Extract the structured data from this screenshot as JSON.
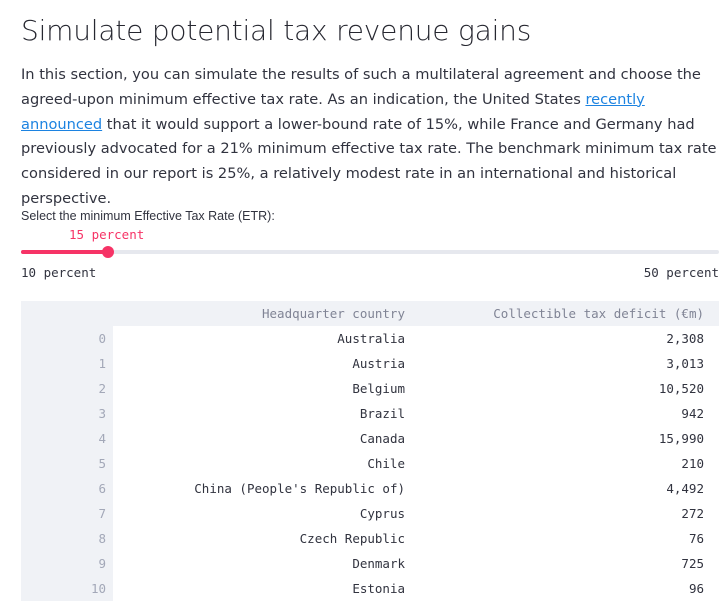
{
  "page": {
    "title": "Simulate potential tax revenue gains",
    "intro": {
      "before_link": "In this section, you can simulate the results of such a multilateral agreement and choose the agreed-upon minimum effective tax rate. As an indication, the United States ",
      "link_text": "recently announced",
      "after_link": " that it would support a lower-bound rate of 15%, while France and Germany had previously advocated for a 21% minimum effective tax rate. The benchmark minimum tax rate considered in our report is 25%, a relatively modest rate in an international and historical perspective."
    }
  },
  "slider": {
    "label": "Select the minimum Effective Tax Rate (ETR):",
    "value_label": "15 percent",
    "min_label": "10 percent",
    "max_label": "50 percent",
    "value": 15,
    "min": 10,
    "max": 50,
    "accent_color": "#f63366"
  },
  "table": {
    "columns": [
      "",
      "Headquarter country",
      "Collectible tax deficit (€m)"
    ],
    "rows": [
      [
        "0",
        "Australia",
        "2,308"
      ],
      [
        "1",
        "Austria",
        "3,013"
      ],
      [
        "2",
        "Belgium",
        "10,520"
      ],
      [
        "3",
        "Brazil",
        "942"
      ],
      [
        "4",
        "Canada",
        "15,990"
      ],
      [
        "5",
        "Chile",
        "210"
      ],
      [
        "6",
        "China (People's Republic of)",
        "4,492"
      ],
      [
        "7",
        "Cyprus",
        "272"
      ],
      [
        "8",
        "Czech Republic",
        "76"
      ],
      [
        "9",
        "Denmark",
        "725"
      ],
      [
        "10",
        "Estonia",
        "96"
      ]
    ]
  }
}
